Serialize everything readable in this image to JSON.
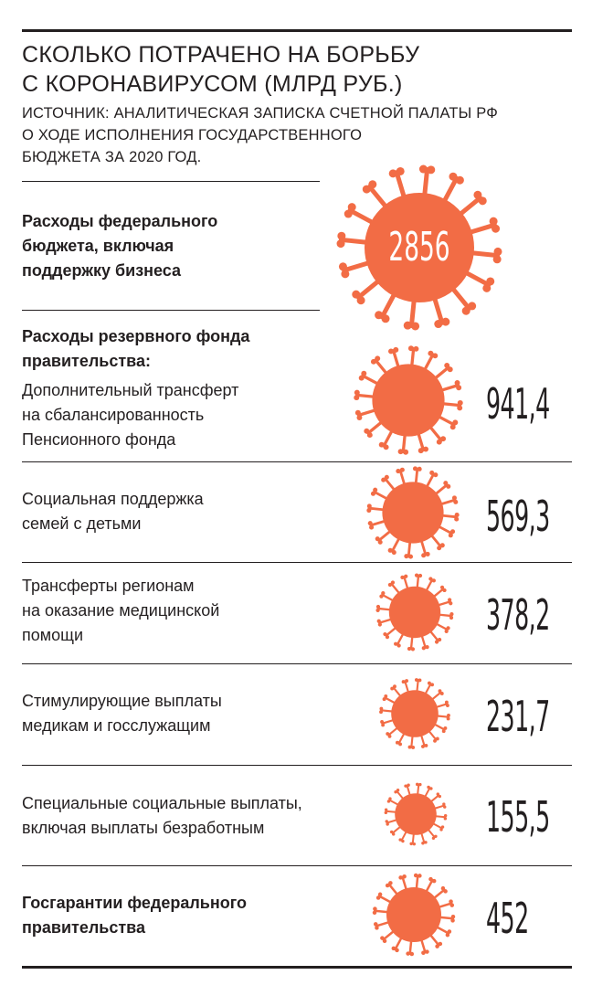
{
  "title_lines": [
    "Сколько потрачено на борьбу",
    "с коронавирусом (млрд руб.)"
  ],
  "source_lines": [
    "Источник: аналитическая записка Счетной палаты РФ",
    "о ходе исполнения государственного",
    "бюджета за 2020 год."
  ],
  "colors": {
    "virus": "#f26c45",
    "text": "#231f20"
  },
  "chart_data": {
    "type": "bar",
    "unit": "млрд руб.",
    "groups": [
      {
        "heading": "",
        "items": [
          {
            "label_lines": [
              "Расходы федерального",
              "бюджета, включая",
              "поддержку бизнеса"
            ],
            "value": 2856,
            "display": "2856"
          }
        ]
      },
      {
        "heading": "Расходы резервного фонда правительства:",
        "items": [
          {
            "label_lines": [
              "Дополнительный трансферт",
              "на сбалансированность",
              "Пенсионного фонда"
            ],
            "value": 941.4,
            "display": "941,4"
          },
          {
            "label_lines": [
              "Социальная поддержка",
              "семей с детьми"
            ],
            "value": 569.3,
            "display": "569,3"
          },
          {
            "label_lines": [
              "Трансферты регионам",
              "на оказание медицинской",
              "помощи"
            ],
            "value": 378.2,
            "display": "378,2"
          },
          {
            "label_lines": [
              "Стимулирующие выплаты",
              "медикам и госслужащим"
            ],
            "value": 231.7,
            "display": "231,7"
          },
          {
            "label_lines": [
              "Специальные социальные выплаты,",
              "включая выплаты безработным"
            ],
            "value": 155.5,
            "display": "155,5"
          }
        ]
      },
      {
        "heading": "",
        "items": [
          {
            "label_lines": [
              "Госгарантии федерального",
              "правительства"
            ],
            "value": 452,
            "display": "452"
          }
        ]
      }
    ]
  }
}
